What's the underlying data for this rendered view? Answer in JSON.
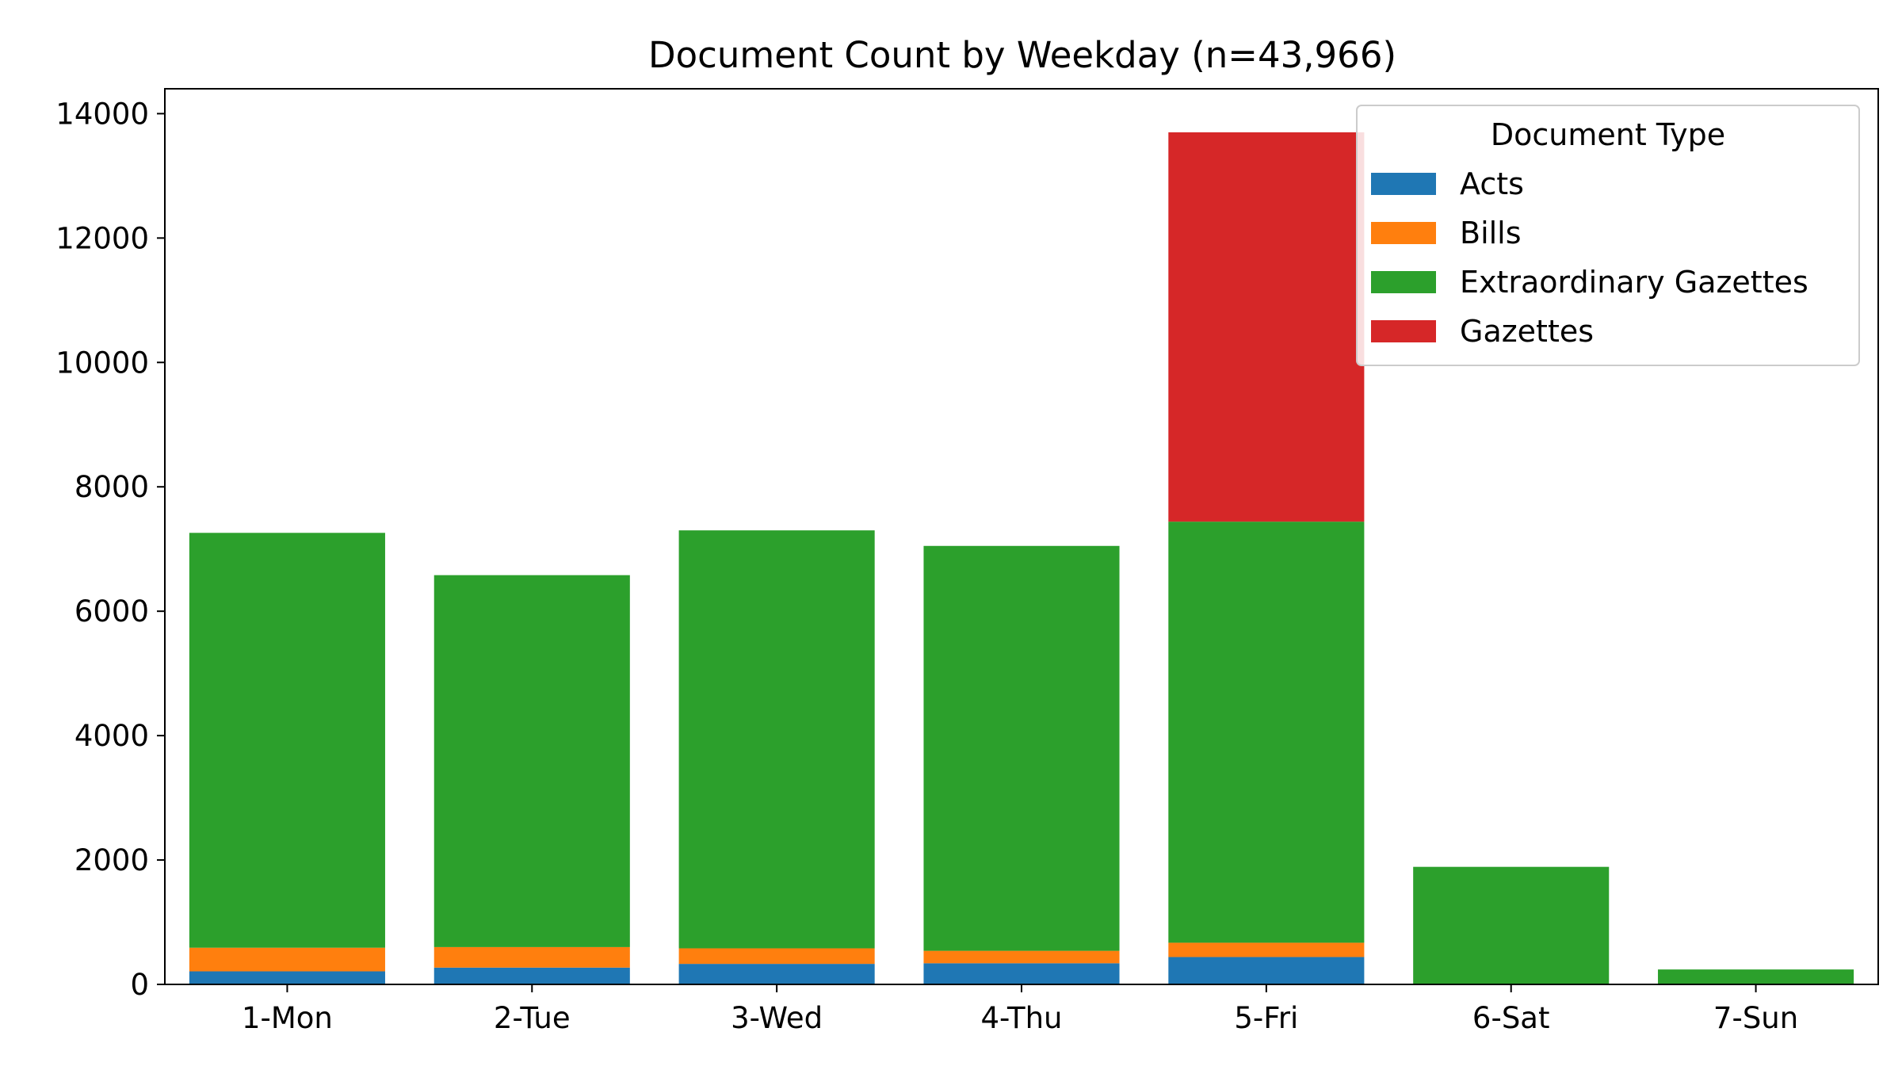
{
  "chart_data": {
    "type": "bar",
    "stacked": true,
    "title": "Document Count by Weekday (n=43,966)",
    "xlabel": "",
    "ylabel": "",
    "categories": [
      "1-Mon",
      "2-Tue",
      "3-Wed",
      "4-Thu",
      "5-Fri",
      "6-Sat",
      "7-Sun"
    ],
    "series": [
      {
        "name": "Acts",
        "color": "#1f77b4",
        "values": [
          210,
          270,
          330,
          340,
          440,
          0,
          0
        ]
      },
      {
        "name": "Bills",
        "color": "#ff7f0e",
        "values": [
          380,
          330,
          250,
          200,
          230,
          0,
          0
        ]
      },
      {
        "name": "Extraordinary Gazettes",
        "color": "#2ca02c",
        "values": [
          6670,
          5980,
          6720,
          6510,
          6770,
          1890,
          240
        ]
      },
      {
        "name": "Gazettes",
        "color": "#d62728",
        "values": [
          0,
          0,
          0,
          0,
          6260,
          0,
          0
        ]
      }
    ],
    "ylim": [
      0,
      14400
    ],
    "yticks": [
      0,
      2000,
      4000,
      6000,
      8000,
      10000,
      12000,
      14000
    ],
    "grid": false,
    "legend": {
      "title": "Document Type",
      "placement": "top-right"
    }
  }
}
